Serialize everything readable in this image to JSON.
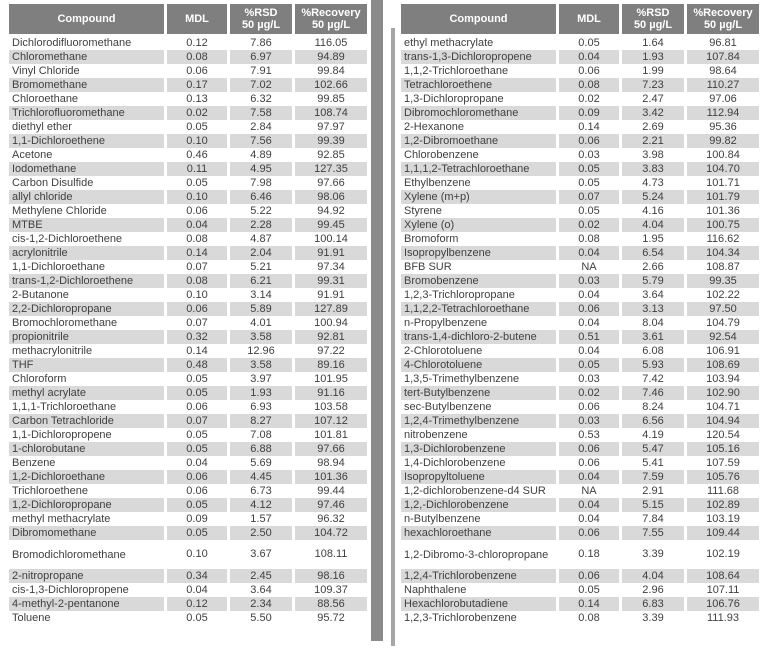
{
  "columns": {
    "compound": "Compound",
    "mdl": "MDL",
    "rsd_line1": "%RSD",
    "rsd_line2": "50 µg/L",
    "recovery_line1": "%Recovery",
    "recovery_line2": "50 µg/L"
  },
  "left_table": {
    "tall_row_index": 36,
    "rows": [
      [
        "Dichlorodifluoromethane",
        "0.12",
        "7.86",
        "116.05"
      ],
      [
        "Chloromethane",
        "0.08",
        "6.97",
        "94.89"
      ],
      [
        "Vinyl Chloride",
        "0.06",
        "7.91",
        "99.84"
      ],
      [
        "Bromomethane",
        "0.17",
        "7.02",
        "102.66"
      ],
      [
        "Chloroethane",
        "0.13",
        "6.32",
        "99.85"
      ],
      [
        "Trichlorofluoromethane",
        "0.02",
        "7.58",
        "108.74"
      ],
      [
        "diethyl ether",
        "0.05",
        "2.84",
        "97.97"
      ],
      [
        "1,1-Dichloroethene",
        "0.10",
        "7.56",
        "99.39"
      ],
      [
        "Acetone",
        "0.46",
        "4.89",
        "92.85"
      ],
      [
        "Iodomethane",
        "0.11",
        "4.95",
        "127.35"
      ],
      [
        "Carbon Disulfide",
        "0.05",
        "7.98",
        "97.66"
      ],
      [
        "allyl chloride",
        "0.10",
        "6.46",
        "98.06"
      ],
      [
        "Methylene Chloride",
        "0.06",
        "5.22",
        "94.92"
      ],
      [
        "MTBE",
        "0.04",
        "2.28",
        "99.45"
      ],
      [
        "cis-1,2-Dichloroethene",
        "0.08",
        "4.87",
        "100.14"
      ],
      [
        "acrylonitrile",
        "0.14",
        "2.04",
        "91.91"
      ],
      [
        "1,1-Dichloroethane",
        "0.07",
        "5.21",
        "97.34"
      ],
      [
        "trans-1,2-Dichloroethene",
        "0.08",
        "6.21",
        "99.31"
      ],
      [
        "2-Butanone",
        "0.10",
        "3.14",
        "91.91"
      ],
      [
        "2,2-Dichloropropane",
        "0.06",
        "5.89",
        "127.89"
      ],
      [
        "Bromochloromethane",
        "0.07",
        "4.01",
        "100.94"
      ],
      [
        "propionitrile",
        "0.32",
        "3.58",
        "92.81"
      ],
      [
        "methacrylonitrile",
        "0.14",
        "12.96",
        "97.22"
      ],
      [
        "THF",
        "0.48",
        "3.58",
        "89.16"
      ],
      [
        "Chloroform",
        "0.05",
        "3.97",
        "101.95"
      ],
      [
        "methyl acrylate",
        "0.05",
        "1.93",
        "91.16"
      ],
      [
        "1,1,1-Trichloroethane",
        "0.06",
        "6.93",
        "103.58"
      ],
      [
        "Carbon Tetrachloride",
        "0.07",
        "8.27",
        "107.12"
      ],
      [
        "1,1-Dichloropropene",
        "0.05",
        "7.08",
        "101.81"
      ],
      [
        "1-chlorobutane",
        "0.05",
        "6.88",
        "97.66"
      ],
      [
        "Benzene",
        "0.04",
        "5.69",
        "98.94"
      ],
      [
        "1,2-Dichloroethane",
        "0.06",
        "4.45",
        "101.36"
      ],
      [
        "Trichloroethene",
        "0.06",
        "6.73",
        "99.44"
      ],
      [
        "1,2-Dichloropropane",
        "0.05",
        "4.12",
        "97.46"
      ],
      [
        "methyl methacrylate",
        "0.09",
        "1.57",
        "96.32"
      ],
      [
        "Dibromomethane",
        "0.05",
        "2.50",
        "104.72"
      ],
      [
        "Bromodichloromethane",
        "0.10",
        "3.67",
        "108.11"
      ],
      [
        "2-nitropropane",
        "0.34",
        "2.45",
        "98.16"
      ],
      [
        "cis-1,3-Dichloropropene",
        "0.04",
        "3.64",
        "109.37"
      ],
      [
        "4-methyl-2-pentanone",
        "0.12",
        "2.34",
        "88.56"
      ],
      [
        "Toluene",
        "0.05",
        "5.50",
        "95.72"
      ]
    ]
  },
  "right_table": {
    "tall_row_index": 36,
    "rows": [
      [
        "ethyl methacrylate",
        "0.05",
        "1.64",
        "96.81"
      ],
      [
        "trans-1,3-Dichloropropene",
        "0.04",
        "1.93",
        "107.84"
      ],
      [
        "1,1,2-Trichloroethane",
        "0.06",
        "1.99",
        "98.64"
      ],
      [
        "Tetrachloroethene",
        "0.08",
        "7.23",
        "110.27"
      ],
      [
        "1,3-Dichloropropane",
        "0.02",
        "2.47",
        "97.06"
      ],
      [
        "Dibromochloromethane",
        "0.09",
        "3.42",
        "112.94"
      ],
      [
        "2-Hexanone",
        "0.14",
        "2.69",
        "95.36"
      ],
      [
        "1,2-Dibromoethane",
        "0.06",
        "2.21",
        "99.82"
      ],
      [
        "Chlorobenzene",
        "0.03",
        "3.98",
        "100.84"
      ],
      [
        "1,1,1,2-Tetrachloroethane",
        "0.05",
        "3.83",
        "104.70"
      ],
      [
        "Ethylbenzene",
        "0.05",
        "4.73",
        "101.71"
      ],
      [
        "Xylene (m+p)",
        "0.07",
        "5.24",
        "101.79"
      ],
      [
        "Styrene",
        "0.05",
        "4.16",
        "101.36"
      ],
      [
        "Xylene (o)",
        "0.02",
        "4.04",
        "100.75"
      ],
      [
        "Bromoform",
        "0.08",
        "1.95",
        "116.62"
      ],
      [
        "Isopropylbenzene",
        "0.04",
        "6.54",
        "104.34"
      ],
      [
        "BFB SUR",
        "NA",
        "2.66",
        "108.87"
      ],
      [
        "Bromobenzene",
        "0.03",
        "5.79",
        "99.35"
      ],
      [
        "1,2,3-Trichloropropane",
        "0.04",
        "3.64",
        "102.22"
      ],
      [
        "1,1,2,2-Tetrachloroethane",
        "0.06",
        "3.13",
        "97.50"
      ],
      [
        "n-Propylbenzene",
        "0.04",
        "8.04",
        "104.79"
      ],
      [
        "trans-1,4-dichloro-2-butene",
        "0.51",
        "3.61",
        "92.54"
      ],
      [
        "2-Chlorotoluene",
        "0.04",
        "6.08",
        "106.91"
      ],
      [
        "4-Chlorotoluene",
        "0.05",
        "5.93",
        "108.69"
      ],
      [
        "1,3,5-Trimethylbenzene",
        "0.03",
        "7.42",
        "103.94"
      ],
      [
        "tert-Butylbenzene",
        "0.02",
        "7.46",
        "102.90"
      ],
      [
        "sec-Butylbenzene",
        "0.06",
        "8.24",
        "104.71"
      ],
      [
        "1,2,4-Trimethylbenzene",
        "0.03",
        "6.56",
        "104.94"
      ],
      [
        "nitrobenzene",
        "0.53",
        "4.19",
        "120.54"
      ],
      [
        "1,3-Dichlorobenzene",
        "0.06",
        "5.47",
        "105.16"
      ],
      [
        "1,4-Dichlorobenzene",
        "0.06",
        "5.41",
        "107.59"
      ],
      [
        "Isopropyltoluene",
        "0.04",
        "7.59",
        "105.76"
      ],
      [
        "1,2-dichlorobenzene-d4 SUR",
        "NA",
        "2.91",
        "111.68"
      ],
      [
        "1,2,-Dichlorobenzene",
        "0.04",
        "5.15",
        "102.89"
      ],
      [
        "n-Butylbenzene",
        "0.04",
        "7.84",
        "103.19"
      ],
      [
        "hexachloroethane",
        "0.06",
        "7.55",
        "109.44"
      ],
      [
        "1,2-Dibromo-3-chloropropane",
        "0.18",
        "3.39",
        "102.19"
      ],
      [
        "1,2,4-Trichlorobenzene",
        "0.06",
        "4.04",
        "108.64"
      ],
      [
        "Naphthalene",
        "0.05",
        "2.96",
        "107.11"
      ],
      [
        "Hexachlorobutadiene",
        "0.14",
        "6.83",
        "106.76"
      ],
      [
        "1,2,3-Trichlorobenzene",
        "0.08",
        "3.39",
        "111.93"
      ]
    ]
  },
  "colors": {
    "header_bg": "#7f7f7f",
    "header_text": "#ffffff",
    "stripe": "#d9d9d9",
    "body_text": "#404040",
    "divider_wide": "#8a8a8a",
    "divider_narrow": "#a6a6a6"
  }
}
